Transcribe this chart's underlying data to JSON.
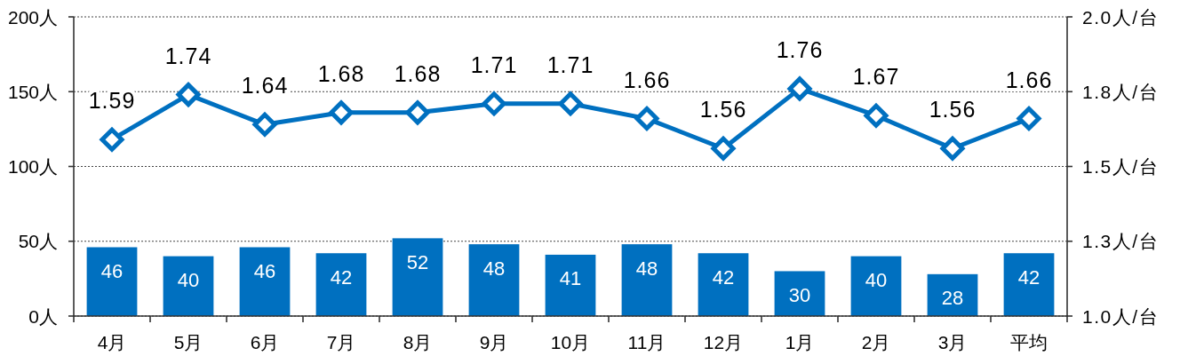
{
  "chart_data": {
    "type": "bar",
    "categories": [
      "4月",
      "5月",
      "6月",
      "7月",
      "8月",
      "9月",
      "10月",
      "11月",
      "12月",
      "1月",
      "2月",
      "3月",
      "平均"
    ],
    "series": [
      {
        "color": "#0070c0",
        "values": [
          46,
          40,
          46,
          42,
          52,
          48,
          41,
          48,
          42,
          30,
          40,
          28,
          42
        ]
      },
      {
        "type": "line",
        "axis": "y2",
        "color": "#0070c0",
        "values": [
          1.59,
          1.74,
          1.64,
          1.68,
          1.68,
          1.71,
          1.71,
          1.66,
          1.56,
          1.76,
          1.67,
          1.56,
          1.66
        ]
      }
    ],
    "ylim": [
      0,
      200
    ],
    "yticks": [
      {
        "value": 0,
        "label": "0人"
      },
      {
        "value": 50,
        "label": "50人"
      },
      {
        "value": 100,
        "label": "100人"
      },
      {
        "value": 150,
        "label": "150人"
      },
      {
        "value": 200,
        "label": "200人"
      }
    ],
    "y2lim": [
      1,
      2
    ],
    "y2ticks": [
      {
        "value": 1,
        "label": "1.0人/台"
      },
      {
        "value": 1.25,
        "label": "1.3人/台"
      },
      {
        "value": 1.5,
        "label": "1.5人/台"
      },
      {
        "value": 1.75,
        "label": "1.8人/台"
      },
      {
        "value": 2,
        "label": "2.0人/台"
      }
    ],
    "grid": "y",
    "data_labels": true,
    "marker": "diamond"
  }
}
